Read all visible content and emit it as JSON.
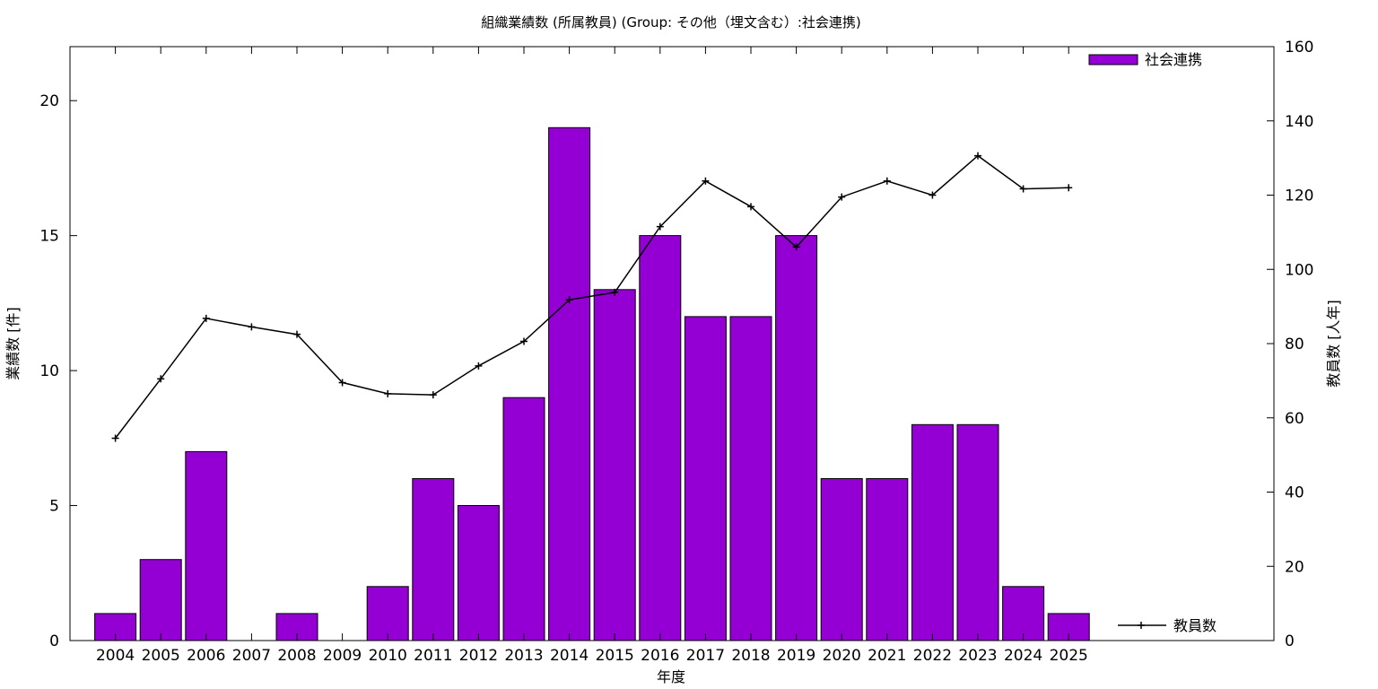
{
  "chart_data": {
    "type": "bar",
    "title": "組織業績数 (所属教員) (Group: その他（埋文含む）:社会連携)",
    "xlabel": "年度",
    "ylabel": "業績数 [件]",
    "y2label": "教員数 [人年]",
    "categories": [
      "2004",
      "2005",
      "2006",
      "2007",
      "2008",
      "2009",
      "2010",
      "2011",
      "2012",
      "2013",
      "2014",
      "2015",
      "2016",
      "2017",
      "2018",
      "2019",
      "2020",
      "2021",
      "2022",
      "2023",
      "2024",
      "2025"
    ],
    "ylim": [
      0,
      22
    ],
    "y_ticks": [
      0,
      5,
      10,
      15,
      20
    ],
    "y2lim": [
      0,
      160
    ],
    "y2_ticks": [
      0,
      20,
      40,
      60,
      80,
      100,
      120,
      140,
      160
    ],
    "series": [
      {
        "name": "社会連携",
        "type": "bar",
        "axis": "left",
        "color": "#9400d3",
        "values": [
          1,
          3,
          7,
          0,
          1,
          0,
          2,
          6,
          5,
          9,
          19,
          13,
          15,
          12,
          12,
          15,
          6,
          6,
          8,
          8,
          2,
          1
        ]
      },
      {
        "name": "教員数",
        "type": "line",
        "axis": "right",
        "color": "#000000",
        "values": [
          54.5,
          70.5,
          86.8,
          84.5,
          82.5,
          69.5,
          66.5,
          66.2,
          74,
          80.6,
          91.8,
          93.8,
          111.5,
          123.8,
          116.9,
          106,
          119.5,
          123.8,
          120,
          130.6,
          121.7,
          122
        ]
      }
    ],
    "legend_position": "top-right",
    "grid": false
  }
}
